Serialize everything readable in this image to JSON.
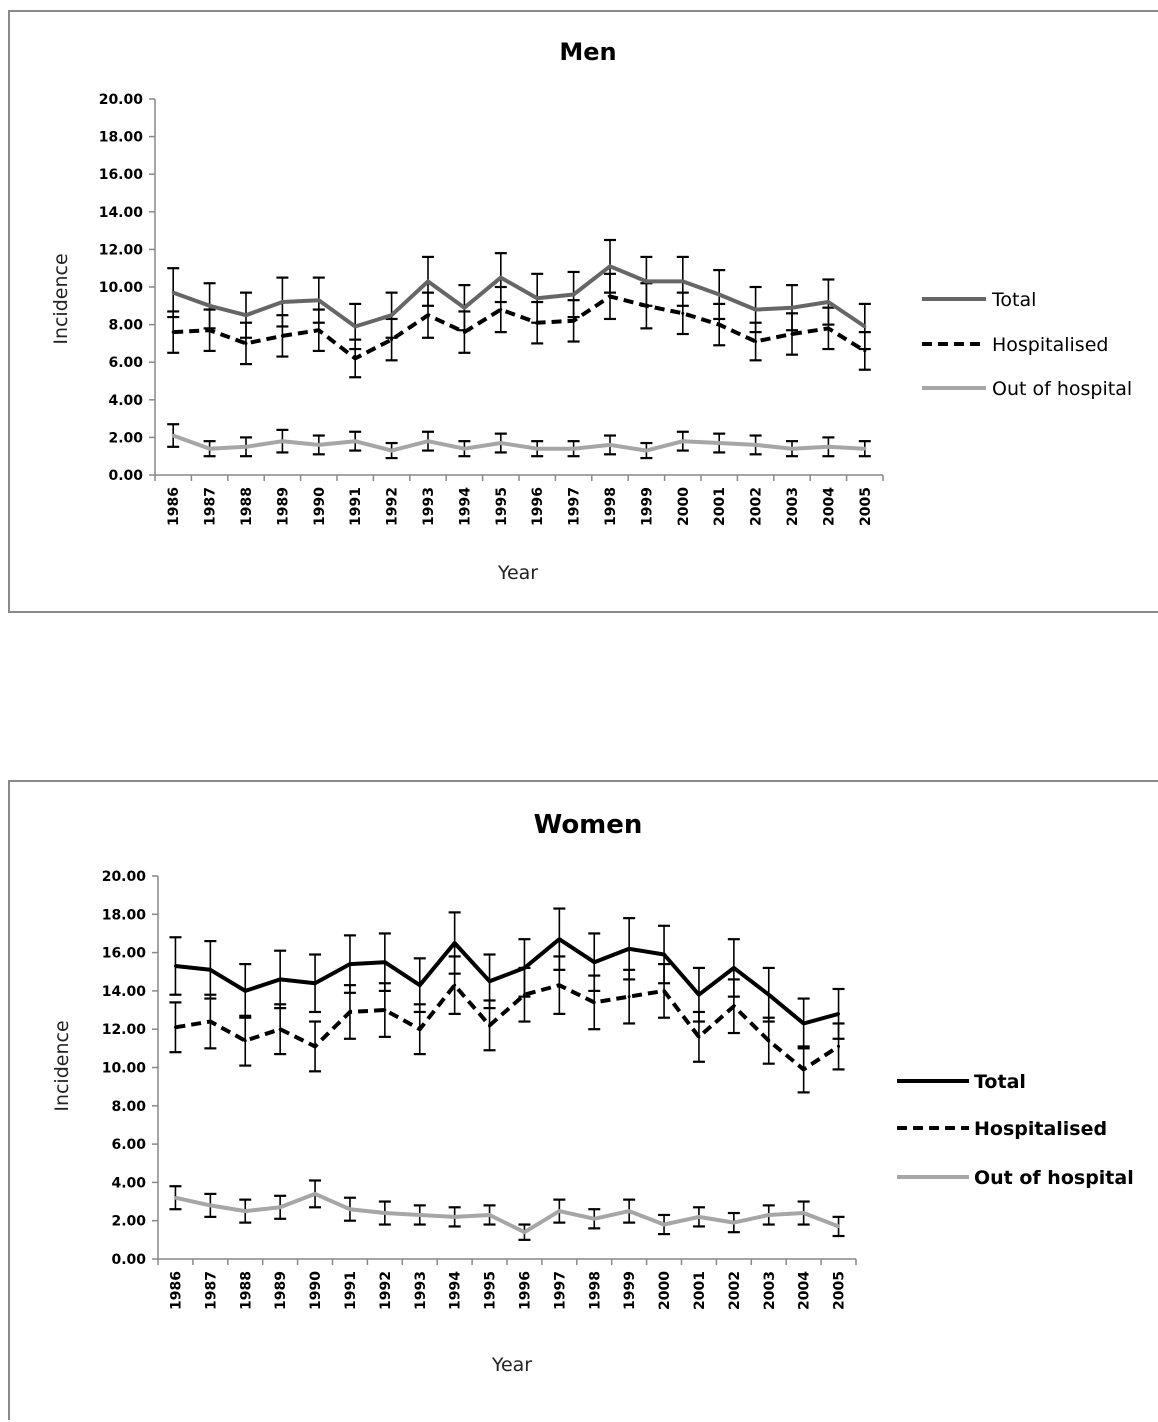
{
  "chart_data": [
    {
      "type": "line",
      "title": "Men",
      "xlabel": "Year",
      "ylabel": "Incidence",
      "ylim": [
        0,
        20
      ],
      "y_ticks": [
        "0.00",
        "2.00",
        "4.00",
        "6.00",
        "8.00",
        "10.00",
        "12.00",
        "14.00",
        "16.00",
        "18.00",
        "20.00"
      ],
      "categories": [
        "1986",
        "1987",
        "1988",
        "1989",
        "1990",
        "1991",
        "1992",
        "1993",
        "1994",
        "1995",
        "1996",
        "1997",
        "1998",
        "1999",
        "2000",
        "2001",
        "2002",
        "2003",
        "2004",
        "2005"
      ],
      "grid": false,
      "legend_position": "right",
      "series": [
        {
          "name": "Total",
          "color": "#666666",
          "dash": "solid",
          "values": [
            9.7,
            9.0,
            8.5,
            9.2,
            9.3,
            7.9,
            8.5,
            10.3,
            8.9,
            10.5,
            9.4,
            9.6,
            11.1,
            10.3,
            10.3,
            9.6,
            8.8,
            8.9,
            9.2,
            7.9
          ],
          "err": [
            1.3,
            1.2,
            1.2,
            1.3,
            1.2,
            1.2,
            1.2,
            1.3,
            1.2,
            1.3,
            1.3,
            1.2,
            1.4,
            1.3,
            1.3,
            1.3,
            1.2,
            1.2,
            1.2,
            1.2
          ]
        },
        {
          "name": "Hospitalised",
          "color": "#000000",
          "dash": "dashed",
          "values": [
            7.6,
            7.7,
            7.0,
            7.4,
            7.7,
            6.2,
            7.2,
            8.5,
            7.6,
            8.8,
            8.1,
            8.2,
            9.5,
            9.0,
            8.6,
            8.0,
            7.1,
            7.5,
            7.8,
            6.6
          ],
          "err": [
            1.1,
            1.1,
            1.1,
            1.1,
            1.1,
            1.0,
            1.1,
            1.2,
            1.1,
            1.2,
            1.1,
            1.1,
            1.2,
            1.2,
            1.1,
            1.1,
            1.0,
            1.1,
            1.1,
            1.0
          ]
        },
        {
          "name": "Out of hospital",
          "color": "#a6a6a6",
          "dash": "solid",
          "values": [
            2.1,
            1.4,
            1.5,
            1.8,
            1.6,
            1.8,
            1.3,
            1.8,
            1.4,
            1.7,
            1.4,
            1.4,
            1.6,
            1.3,
            1.8,
            1.7,
            1.6,
            1.4,
            1.5,
            1.4
          ],
          "err": [
            0.6,
            0.4,
            0.5,
            0.6,
            0.5,
            0.5,
            0.4,
            0.5,
            0.4,
            0.5,
            0.4,
            0.4,
            0.5,
            0.4,
            0.5,
            0.5,
            0.5,
            0.4,
            0.5,
            0.4
          ]
        }
      ]
    },
    {
      "type": "line",
      "title": "Women",
      "xlabel": "Year",
      "ylabel": "Incidence",
      "ylim": [
        0,
        20
      ],
      "y_ticks": [
        "0.00",
        "2.00",
        "4.00",
        "6.00",
        "8.00",
        "10.00",
        "12.00",
        "14.00",
        "16.00",
        "18.00",
        "20.00"
      ],
      "categories": [
        "1986",
        "1987",
        "1988",
        "1989",
        "1990",
        "1991",
        "1992",
        "1993",
        "1994",
        "1995",
        "1996",
        "1997",
        "1998",
        "1999",
        "2000",
        "2001",
        "2002",
        "2003",
        "2004",
        "2005"
      ],
      "grid": false,
      "legend_position": "right",
      "series": [
        {
          "name": "Total",
          "color": "#000000",
          "dash": "solid",
          "values": [
            15.3,
            15.1,
            14.0,
            14.6,
            14.4,
            15.4,
            15.5,
            14.3,
            16.5,
            14.5,
            15.2,
            16.7,
            15.5,
            16.2,
            15.9,
            13.8,
            15.2,
            13.8,
            12.3,
            12.8
          ],
          "err": [
            1.5,
            1.5,
            1.4,
            1.5,
            1.5,
            1.5,
            1.5,
            1.4,
            1.6,
            1.4,
            1.5,
            1.6,
            1.5,
            1.6,
            1.5,
            1.4,
            1.5,
            1.4,
            1.3,
            1.3
          ]
        },
        {
          "name": "Hospitalised",
          "color": "#000000",
          "dash": "dashed",
          "values": [
            12.1,
            12.4,
            11.4,
            12.0,
            11.1,
            12.9,
            13.0,
            12.0,
            14.3,
            12.2,
            13.8,
            14.3,
            13.4,
            13.7,
            14.0,
            11.6,
            13.2,
            11.4,
            9.9,
            11.1
          ],
          "err": [
            1.3,
            1.4,
            1.3,
            1.3,
            1.3,
            1.4,
            1.4,
            1.3,
            1.5,
            1.3,
            1.4,
            1.5,
            1.4,
            1.4,
            1.4,
            1.3,
            1.4,
            1.2,
            1.2,
            1.2
          ]
        },
        {
          "name": "Out of hospital",
          "color": "#a6a6a6",
          "dash": "solid",
          "values": [
            3.2,
            2.8,
            2.5,
            2.7,
            3.4,
            2.6,
            2.4,
            2.3,
            2.2,
            2.3,
            1.4,
            2.5,
            2.1,
            2.5,
            1.8,
            2.2,
            1.9,
            2.3,
            2.4,
            1.7
          ],
          "err": [
            0.6,
            0.6,
            0.6,
            0.6,
            0.7,
            0.6,
            0.6,
            0.5,
            0.5,
            0.5,
            0.4,
            0.6,
            0.5,
            0.6,
            0.5,
            0.5,
            0.5,
            0.5,
            0.6,
            0.5
          ]
        }
      ]
    }
  ]
}
